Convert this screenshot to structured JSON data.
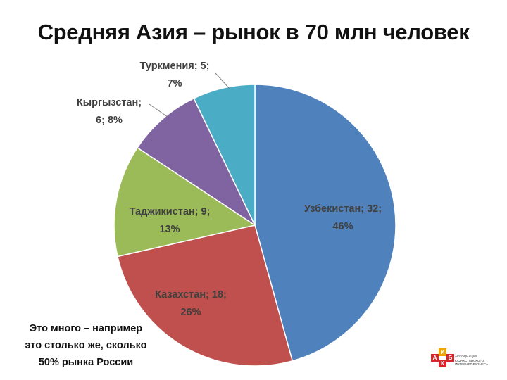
{
  "title": "Средняя Азия – рынок в 70 млн человек",
  "note_lines": [
    "Это много – например",
    "это столько же, сколько",
    "50% рынка России"
  ],
  "colors": {
    "Узбекистан": "#4F81BD",
    "Казахстан": "#C0504D",
    "Таджикистан": "#9BBB59",
    "Кыргызстан": "#8064A2",
    "Туркмения": "#4BACC6"
  },
  "logo": {
    "letters": [
      "А",
      "К",
      "И",
      "Б"
    ],
    "caption": [
      "АССОЦИАЦИЯ КАЗАХСТАНСКОГО",
      "ИНТЕРНЕТ-БИЗНЕСА"
    ]
  },
  "chart_data": {
    "type": "pie",
    "title": "Средняя Азия – рынок в 70 млн человек",
    "categories": [
      "Узбекистан",
      "Казахстан",
      "Таджикистан",
      "Кыргызстан",
      "Туркмения"
    ],
    "values": [
      32,
      18,
      9,
      6,
      5
    ],
    "percents": [
      "46%",
      "26%",
      "13%",
      "8%",
      "7%"
    ],
    "labels": [
      [
        "Узбекистан; 32;",
        "46%"
      ],
      [
        "Казахстан; 18;",
        "26%"
      ],
      [
        "Таджикистан; 9;",
        "13%"
      ],
      [
        "Кыргызстан;",
        "6; 8%"
      ],
      [
        "Туркмения; 5;",
        "7%"
      ]
    ]
  }
}
